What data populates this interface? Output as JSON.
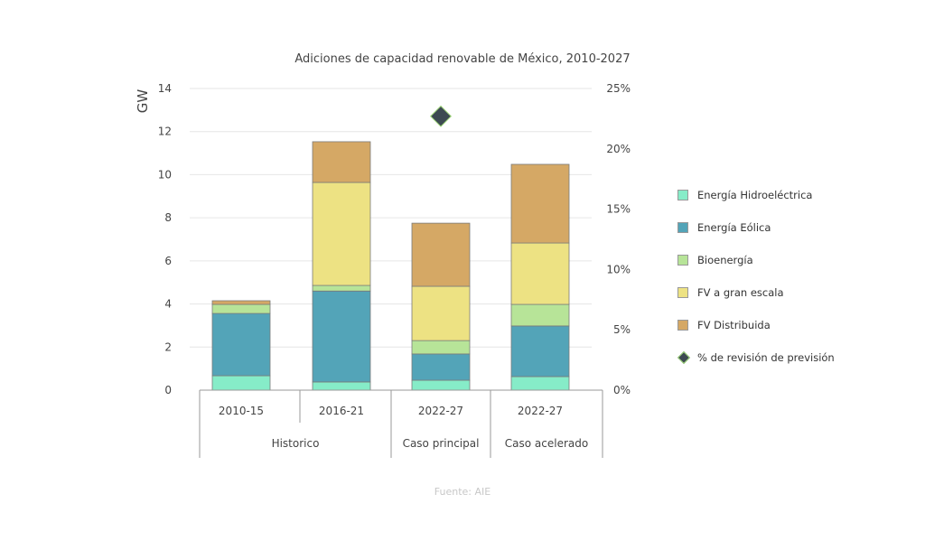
{
  "chart_data": {
    "type": "bar",
    "stacked": true,
    "title": "Adiciones de capacidad renovable de México, 2010-2027",
    "ylabel": "GW",
    "ylim": [
      0,
      14
    ],
    "yticks": [
      0,
      2,
      4,
      6,
      8,
      10,
      12,
      14
    ],
    "y2lim": [
      0,
      25
    ],
    "y2ticks": [
      "0%",
      "5%",
      "10%",
      "15%",
      "20%",
      "25%"
    ],
    "categories": [
      "2010-15",
      "2016-21",
      "2022-27",
      "2022-27"
    ],
    "groups": [
      {
        "label": "Historico",
        "span": 2
      },
      {
        "label": "Caso principal",
        "span": 1
      },
      {
        "label": "Caso acelerado",
        "span": 1
      }
    ],
    "series": [
      {
        "name": "Energía Hidroeléctrica",
        "color": "#86ecc8",
        "values": [
          0.67,
          0.38,
          0.46,
          0.63
        ]
      },
      {
        "name": "Energía Eólica",
        "color": "#53a4b8",
        "values": [
          2.89,
          4.22,
          1.22,
          2.35
        ]
      },
      {
        "name": "Bioenergía",
        "color": "#b7e498",
        "values": [
          0.42,
          0.26,
          0.62,
          1.0
        ]
      },
      {
        "name": "FV a gran escala",
        "color": "#ede283",
        "values": [
          0.0,
          4.78,
          2.52,
          2.85
        ]
      },
      {
        "name": "FV Distribuida",
        "color": "#d5a865",
        "values": [
          0.17,
          1.89,
          2.93,
          3.65
        ]
      }
    ],
    "marker_series": {
      "name": "% de revisión de previsión",
      "color": "#3d4a52",
      "axis": "right",
      "values": [
        null,
        null,
        22.7,
        null
      ]
    },
    "grid": true,
    "legend": "right",
    "source": "Fuente: AIE"
  }
}
